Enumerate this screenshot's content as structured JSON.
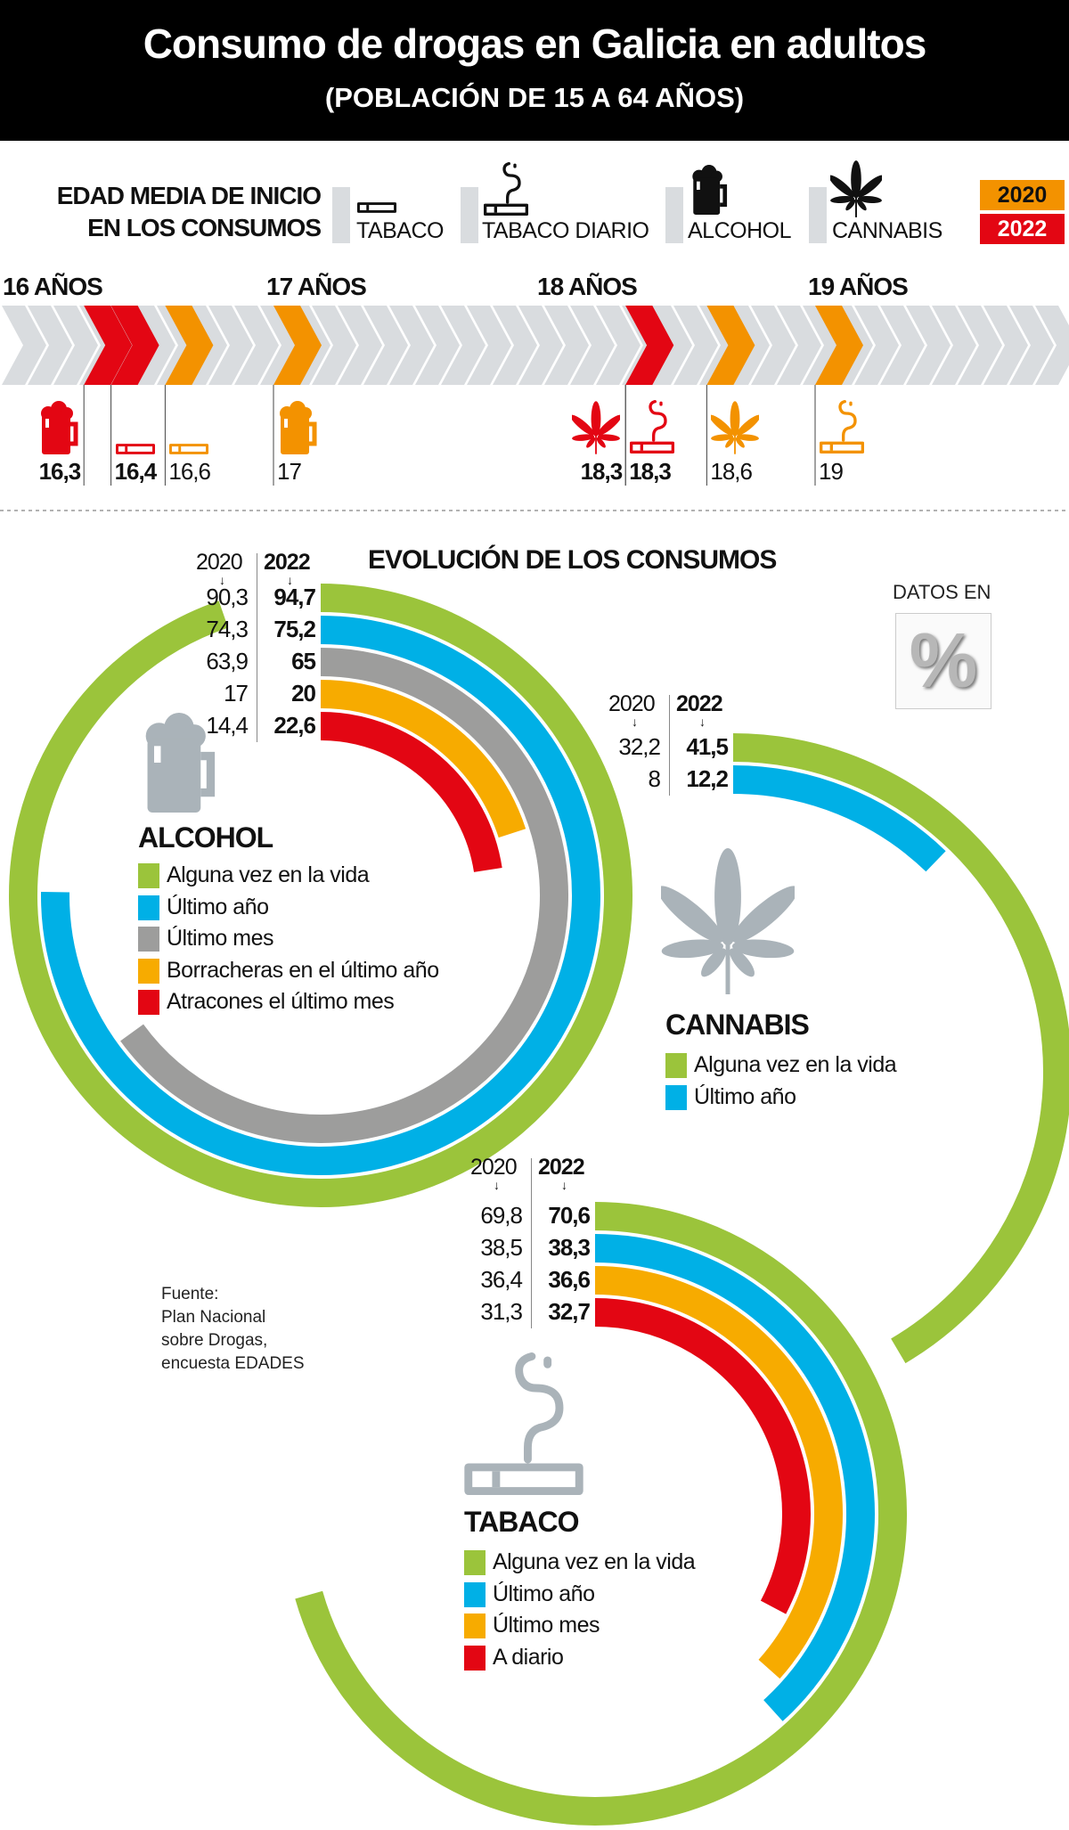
{
  "header": {
    "title": "Consumo de drogas en Galicia en adultos",
    "subtitle": "(POBLACIÓN DE 15 A 64 AÑOS)"
  },
  "legend": {
    "heading_line1": "EDAD MEDIA DE INICIO",
    "heading_line2": "EN LOS CONSUMOS",
    "items": [
      {
        "label": "TABACO",
        "icon": "cigarette-icon"
      },
      {
        "label": "TABACO DIARIO",
        "icon": "smoking-cigarette-icon"
      },
      {
        "label": "ALCOHOL",
        "icon": "beer-mug-icon"
      },
      {
        "label": "CANNABIS",
        "icon": "cannabis-leaf-icon"
      }
    ],
    "years": [
      {
        "label": "2020",
        "color": "#f39200"
      },
      {
        "label": "2022",
        "color": "#e30613"
      }
    ]
  },
  "colors": {
    "green": "#9bc43b",
    "blue": "#00b0e6",
    "grey": "#9d9d9c",
    "orange": "#f7ab00",
    "red": "#e30613",
    "timeline_orange": "#f39200",
    "band_grey": "#d9dcdf",
    "icon_grey": "#aab3b9"
  },
  "chart_data": [
    {
      "type": "timeline",
      "title": "EDAD MEDIA DE INICIO EN LOS CONSUMOS",
      "ticks": [
        {
          "value": 16,
          "label": "16 AÑOS"
        },
        {
          "value": 17,
          "label": "17 AÑOS"
        },
        {
          "value": 18,
          "label": "18 AÑOS"
        },
        {
          "value": 19,
          "label": "19 AÑOS"
        }
      ],
      "points": [
        {
          "category": "ALCOHOL",
          "year": "2022",
          "value": 16.3,
          "label": "16,3",
          "icon": "beer-mug-icon"
        },
        {
          "category": "TABACO",
          "year": "2022",
          "value": 16.4,
          "label": "16,4",
          "icon": "cigarette-icon"
        },
        {
          "category": "TABACO",
          "year": "2020",
          "value": 16.6,
          "label": "16,6",
          "icon": "cigarette-icon"
        },
        {
          "category": "ALCOHOL",
          "year": "2020",
          "value": 17,
          "label": "17",
          "icon": "beer-mug-icon"
        },
        {
          "category": "CANNABIS",
          "year": "2022",
          "value": 18.3,
          "label": "18,3",
          "icon": "cannabis-leaf-icon"
        },
        {
          "category": "TABACO DIARIO",
          "year": "2022",
          "value": 18.3,
          "label": "18,3",
          "icon": "smoking-cigarette-icon"
        },
        {
          "category": "CANNABIS",
          "year": "2020",
          "value": 18.6,
          "label": "18,6",
          "icon": "cannabis-leaf-icon"
        },
        {
          "category": "TABACO DIARIO",
          "year": "2020",
          "value": 19,
          "label": "19",
          "icon": "smoking-cigarette-icon"
        }
      ]
    },
    {
      "type": "radial-bar",
      "title": "ALCOHOL",
      "section_title": "EVOLUCIÓN DE LOS CONSUMOS",
      "col_2020": "2020",
      "col_2022": "2022",
      "icon": "beer-mug-icon",
      "series": [
        {
          "name": "Alguna vez en la vida",
          "v2020": "90,3",
          "v2022": "94,7",
          "value": 94.7,
          "color": "#9bc43b"
        },
        {
          "name": "Último año",
          "v2020": "74,3",
          "v2022": "75,2",
          "value": 75.2,
          "color": "#00b0e6"
        },
        {
          "name": "Último mes",
          "v2020": "63,9",
          "v2022": "65",
          "value": 65,
          "color": "#9d9d9c"
        },
        {
          "name": "Borracheras en el último año",
          "v2020": "17",
          "v2022": "20",
          "value": 20,
          "color": "#f7ab00"
        },
        {
          "name": "Atracones el último mes",
          "v2020": "14,4",
          "v2022": "22,6",
          "value": 22.6,
          "color": "#e30613"
        }
      ]
    },
    {
      "type": "radial-bar",
      "title": "CANNABIS",
      "col_2020": "2020",
      "col_2022": "2022",
      "icon": "cannabis-leaf-icon",
      "series": [
        {
          "name": "Alguna vez en la vida",
          "v2020": "32,2",
          "v2022": "41,5",
          "value": 41.5,
          "color": "#9bc43b"
        },
        {
          "name": "Último año",
          "v2020": "8",
          "v2022": "12,2",
          "value": 12.2,
          "color": "#00b0e6"
        }
      ]
    },
    {
      "type": "radial-bar",
      "title": "TABACO",
      "col_2020": "2020",
      "col_2022": "2022",
      "icon": "smoking-cigarette-icon",
      "series": [
        {
          "name": "Alguna vez en la vida",
          "v2020": "69,8",
          "v2022": "70,6",
          "value": 70.6,
          "color": "#9bc43b"
        },
        {
          "name": "Último año",
          "v2020": "38,5",
          "v2022": "38,3",
          "value": 38.3,
          "color": "#00b0e6"
        },
        {
          "name": "Último mes",
          "v2020": "36,4",
          "v2022": "36,6",
          "value": 36.6,
          "color": "#f7ab00"
        },
        {
          "name": "A diario",
          "v2020": "31,3",
          "v2022": "32,7",
          "value": 32.7,
          "color": "#e30613"
        }
      ]
    }
  ],
  "units_note": {
    "label": "DATOS EN",
    "symbol": "%"
  },
  "source": {
    "lines": [
      "Fuente:",
      "Plan Nacional",
      "sobre Drogas,",
      "encuesta EDADES"
    ]
  }
}
